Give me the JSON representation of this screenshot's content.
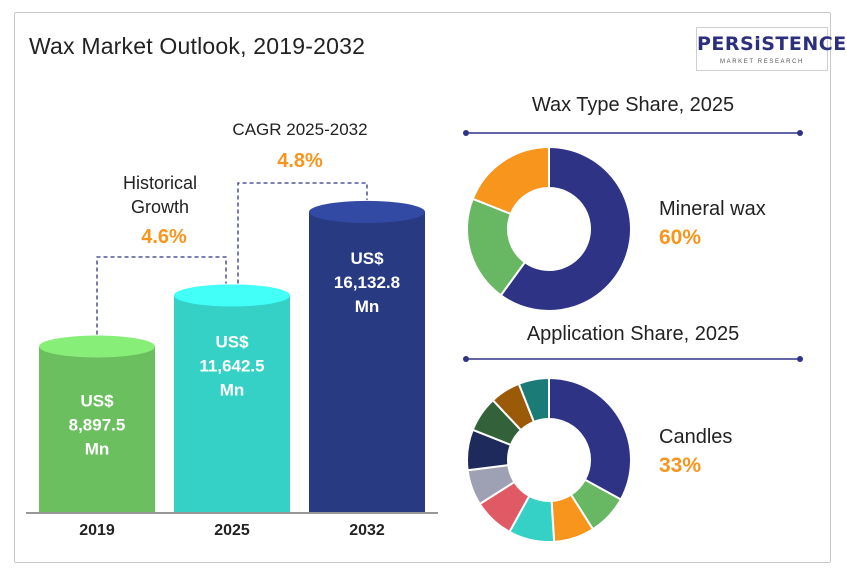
{
  "header": {
    "title": "Wax Market Outlook, 2019-2032",
    "logo_name": "PERSiSTENCE",
    "logo_sub": "MARKET RESEARCH"
  },
  "chart_data": [
    {
      "type": "bar",
      "title": "",
      "categories": [
        "2019",
        "2025",
        "2032"
      ],
      "values": [
        8897.5,
        11642.5,
        16132.8
      ],
      "value_labels": [
        [
          "US$",
          "8,897.5",
          "Mn"
        ],
        [
          "US$",
          "11,642.5",
          "Mn"
        ],
        [
          "US$",
          "16,132.8",
          "Mn"
        ]
      ],
      "unit": "US$ Mn",
      "colors": [
        "#6cbf5f",
        "#35d1c6",
        "#283b82"
      ],
      "annotations": [
        {
          "label_lines": [
            "Historical",
            "Growth"
          ],
          "value": "4.6%",
          "from": "2019",
          "to": "2025"
        },
        {
          "label_lines": [
            "CAGR 2025-2032"
          ],
          "value": "4.8%",
          "from": "2025",
          "to": "2032"
        }
      ]
    },
    {
      "type": "pie",
      "title": "Wax Type Share, 2025",
      "values": [
        60,
        21,
        19
      ],
      "colors": [
        "#2f3386",
        "#68b763",
        "#f7951d"
      ],
      "highlight": {
        "label": "Mineral wax",
        "value": "60%"
      }
    },
    {
      "type": "pie",
      "title": "Application Share, 2025",
      "values": [
        33,
        8,
        8,
        9,
        8,
        7,
        8,
        7,
        6,
        6
      ],
      "colors": [
        "#2f3386",
        "#68b763",
        "#f7951d",
        "#35d1c6",
        "#e05a66",
        "#9ea0b4",
        "#1f2a5c",
        "#32613a",
        "#9a5a07",
        "#1a7b77"
      ],
      "highlight": {
        "label": "Candles",
        "value": "33%"
      }
    }
  ],
  "style": {
    "accent": "#f7951d",
    "text": "#222222",
    "connector": "#2f3386"
  }
}
